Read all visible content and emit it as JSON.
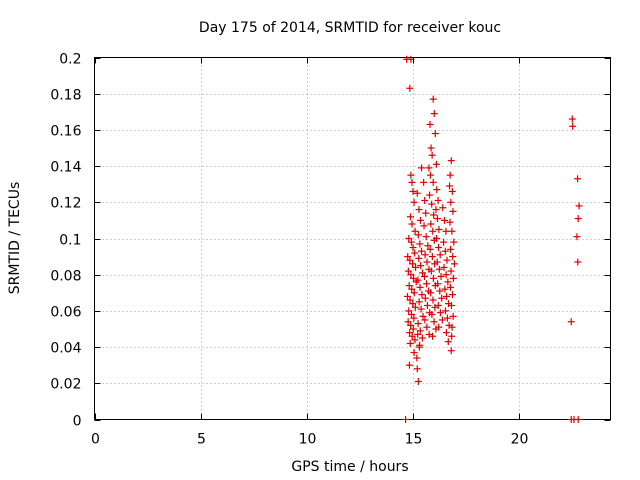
{
  "chart_data": {
    "type": "scatter",
    "title": "Day 175 of 2014, SRMTID for receiver kouc",
    "xlabel": "GPS time / hours",
    "ylabel": "SRMTID / TECUs",
    "xlim": [
      0,
      24.3
    ],
    "ylim": [
      0,
      0.2
    ],
    "xticks": [
      0,
      5,
      10,
      15,
      20
    ],
    "xtick_labels": [
      "0",
      "5",
      "10",
      "15",
      "20"
    ],
    "yticks": [
      0,
      0.02,
      0.04,
      0.06,
      0.08,
      0.1,
      0.12,
      0.14,
      0.16,
      0.18,
      0.2
    ],
    "ytick_labels": [
      "0",
      "0.02",
      "0.04",
      "0.06",
      "0.08",
      "0.1",
      "0.12",
      "0.14",
      "0.16",
      "0.18",
      "0.2"
    ],
    "grid": true,
    "marker": "+",
    "color": "#dd0000",
    "series": [
      {
        "name": "SRMTID",
        "points": [
          [
            14.7,
            0.199
          ],
          [
            14.9,
            0.199
          ],
          [
            14.85,
            0.183
          ],
          [
            14.9,
            0.135
          ],
          [
            14.95,
            0.131
          ],
          [
            15.0,
            0.126
          ],
          [
            15.05,
            0.12
          ],
          [
            14.88,
            0.112
          ],
          [
            14.95,
            0.108
          ],
          [
            15.1,
            0.104
          ],
          [
            14.8,
            0.1
          ],
          [
            14.92,
            0.098
          ],
          [
            15.0,
            0.095
          ],
          [
            15.08,
            0.092
          ],
          [
            14.75,
            0.09
          ],
          [
            14.85,
            0.088
          ],
          [
            14.98,
            0.086
          ],
          [
            15.12,
            0.084
          ],
          [
            14.78,
            0.082
          ],
          [
            14.9,
            0.08
          ],
          [
            15.02,
            0.078
          ],
          [
            15.15,
            0.076
          ],
          [
            14.82,
            0.074
          ],
          [
            14.94,
            0.072
          ],
          [
            15.06,
            0.07
          ],
          [
            14.74,
            0.068
          ],
          [
            14.86,
            0.066
          ],
          [
            14.99,
            0.064
          ],
          [
            15.11,
            0.062
          ],
          [
            14.8,
            0.06
          ],
          [
            14.93,
            0.058
          ],
          [
            15.04,
            0.056
          ],
          [
            14.77,
            0.054
          ],
          [
            14.89,
            0.052
          ],
          [
            15.01,
            0.05
          ],
          [
            14.84,
            0.048
          ],
          [
            14.96,
            0.046
          ],
          [
            15.09,
            0.044
          ],
          [
            14.87,
            0.042
          ],
          [
            15.05,
            0.037
          ],
          [
            14.83,
            0.03
          ],
          [
            15.25,
            0.021
          ],
          [
            15.2,
            0.028
          ],
          [
            15.18,
            0.034
          ],
          [
            15.3,
            0.04
          ],
          [
            15.22,
            0.047
          ],
          [
            15.2,
            0.125
          ],
          [
            15.28,
            0.116
          ],
          [
            15.35,
            0.11
          ],
          [
            15.25,
            0.102
          ],
          [
            15.32,
            0.097
          ],
          [
            15.4,
            0.093
          ],
          [
            15.27,
            0.089
          ],
          [
            15.36,
            0.085
          ],
          [
            15.45,
            0.081
          ],
          [
            15.23,
            0.077
          ],
          [
            15.33,
            0.073
          ],
          [
            15.42,
            0.069
          ],
          [
            15.29,
            0.065
          ],
          [
            15.38,
            0.061
          ],
          [
            15.47,
            0.057
          ],
          [
            15.24,
            0.053
          ],
          [
            15.34,
            0.049
          ],
          [
            15.44,
            0.045
          ],
          [
            15.31,
            0.041
          ],
          [
            15.4,
            0.139
          ],
          [
            15.5,
            0.131
          ],
          [
            15.55,
            0.121
          ],
          [
            15.6,
            0.114
          ],
          [
            15.52,
            0.107
          ],
          [
            15.62,
            0.101
          ],
          [
            15.7,
            0.096
          ],
          [
            15.57,
            0.091
          ],
          [
            15.66,
            0.087
          ],
          [
            15.75,
            0.083
          ],
          [
            15.54,
            0.079
          ],
          [
            15.64,
            0.075
          ],
          [
            15.73,
            0.071
          ],
          [
            15.58,
            0.067
          ],
          [
            15.68,
            0.063
          ],
          [
            15.78,
            0.059
          ],
          [
            15.56,
            0.055
          ],
          [
            15.65,
            0.051
          ],
          [
            15.76,
            0.047
          ],
          [
            15.8,
            0.163
          ],
          [
            15.85,
            0.15
          ],
          [
            15.9,
            0.146
          ],
          [
            15.75,
            0.139
          ],
          [
            15.82,
            0.135
          ],
          [
            15.95,
            0.131
          ],
          [
            15.78,
            0.124
          ],
          [
            15.88,
            0.119
          ],
          [
            15.97,
            0.113
          ],
          [
            15.84,
            0.108
          ],
          [
            15.93,
            0.104
          ],
          [
            16.0,
            0.099
          ],
          [
            15.81,
            0.094
          ],
          [
            15.91,
            0.09
          ],
          [
            16.02,
            0.086
          ],
          [
            15.86,
            0.082
          ],
          [
            15.96,
            0.078
          ],
          [
            16.05,
            0.074
          ],
          [
            15.83,
            0.07
          ],
          [
            15.94,
            0.066
          ],
          [
            16.03,
            0.062
          ],
          [
            15.89,
            0.058
          ],
          [
            15.99,
            0.054
          ],
          [
            16.08,
            0.05
          ],
          [
            15.92,
            0.046
          ],
          [
            15.95,
            0.177
          ],
          [
            16.0,
            0.169
          ],
          [
            16.05,
            0.158
          ],
          [
            16.1,
            0.141
          ],
          [
            16.12,
            0.127
          ],
          [
            16.18,
            0.121
          ],
          [
            16.08,
            0.116
          ],
          [
            16.15,
            0.111
          ],
          [
            16.22,
            0.105
          ],
          [
            16.11,
            0.1
          ],
          [
            16.2,
            0.095
          ],
          [
            16.28,
            0.091
          ],
          [
            16.14,
            0.087
          ],
          [
            16.24,
            0.083
          ],
          [
            16.32,
            0.079
          ],
          [
            16.16,
            0.075
          ],
          [
            16.26,
            0.071
          ],
          [
            16.35,
            0.067
          ],
          [
            16.19,
            0.063
          ],
          [
            16.29,
            0.059
          ],
          [
            16.38,
            0.055
          ],
          [
            16.21,
            0.051
          ],
          [
            16.4,
            0.117
          ],
          [
            16.48,
            0.11
          ],
          [
            16.55,
            0.104
          ],
          [
            16.44,
            0.098
          ],
          [
            16.52,
            0.093
          ],
          [
            16.6,
            0.088
          ],
          [
            16.46,
            0.084
          ],
          [
            16.56,
            0.08
          ],
          [
            16.64,
            0.076
          ],
          [
            16.5,
            0.072
          ],
          [
            16.58,
            0.068
          ],
          [
            16.67,
            0.064
          ],
          [
            16.53,
            0.06
          ],
          [
            16.62,
            0.056
          ],
          [
            16.7,
            0.052
          ],
          [
            16.57,
            0.048
          ],
          [
            16.66,
            0.043
          ],
          [
            16.8,
            0.143
          ],
          [
            16.75,
            0.135
          ],
          [
            16.72,
            0.129
          ],
          [
            16.85,
            0.126
          ],
          [
            16.78,
            0.12
          ],
          [
            16.88,
            0.115
          ],
          [
            16.74,
            0.109
          ],
          [
            16.83,
            0.104
          ],
          [
            16.92,
            0.098
          ],
          [
            16.77,
            0.094
          ],
          [
            16.87,
            0.09
          ],
          [
            16.95,
            0.086
          ],
          [
            16.79,
            0.082
          ],
          [
            16.9,
            0.078
          ],
          [
            16.76,
            0.073
          ],
          [
            16.86,
            0.069
          ],
          [
            16.81,
            0.063
          ],
          [
            16.89,
            0.057
          ],
          [
            16.84,
            0.051
          ],
          [
            16.82,
            0.046
          ],
          [
            16.8,
            0.038
          ],
          [
            22.5,
            0.166
          ],
          [
            22.52,
            0.162
          ],
          [
            22.75,
            0.133
          ],
          [
            22.82,
            0.118
          ],
          [
            22.78,
            0.111
          ],
          [
            22.72,
            0.101
          ],
          [
            22.76,
            0.087
          ],
          [
            22.45,
            0.054
          ],
          [
            14.65,
            0.0
          ],
          [
            22.45,
            0.0
          ],
          [
            22.58,
            0.0
          ],
          [
            22.78,
            0.0
          ]
        ]
      }
    ]
  }
}
